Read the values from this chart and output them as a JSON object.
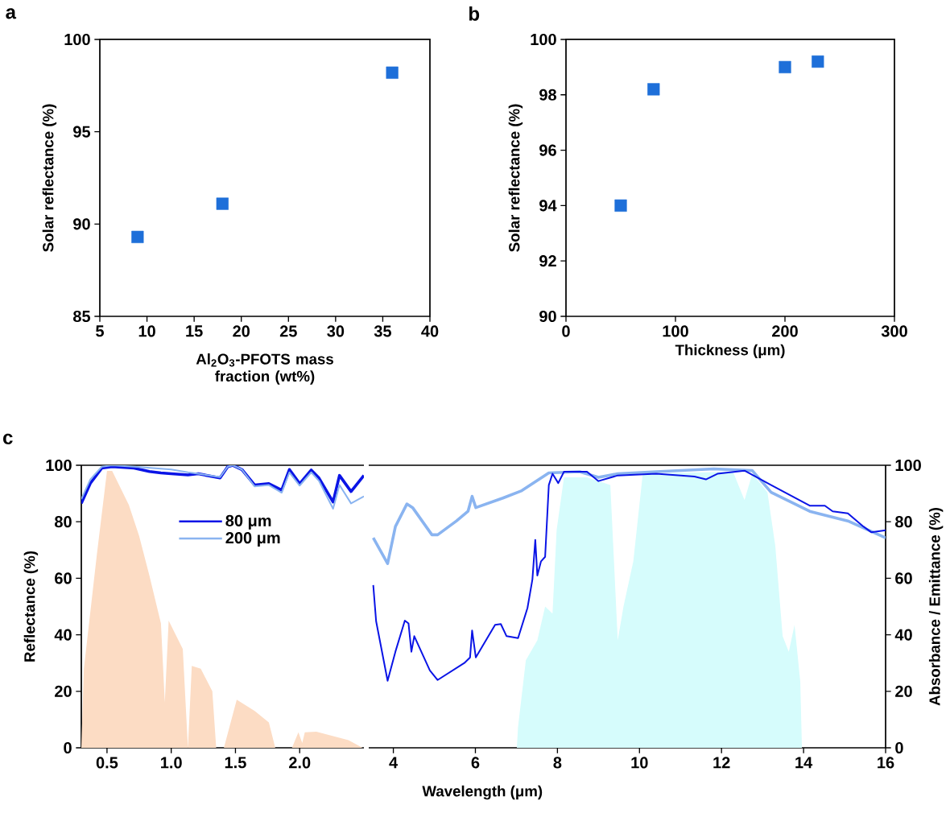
{
  "chart_data": [
    {
      "type": "scatter",
      "title": "a",
      "xlabel": "Al$_{2}$O$_{3}$-PFOTS mass fraction (wt%)",
      "ylabel": "Solar reflectance (%)",
      "x": [
        9,
        18,
        36
      ],
      "values": [
        89.3,
        91.1,
        98.2
      ],
      "color": "#1e6fd9",
      "marker": "square",
      "xlim": [
        5,
        40
      ],
      "xticks": [
        5,
        10,
        15,
        20,
        25,
        30,
        35,
        40
      ],
      "ylim": [
        85,
        100
      ],
      "yticks": [
        85,
        90,
        95,
        100
      ]
    },
    {
      "type": "scatter",
      "title": "b",
      "xlabel": "Thickness (μm)",
      "ylabel": "Solar reflectance (%)",
      "x": [
        50,
        80,
        200,
        230
      ],
      "values": [
        94.0,
        98.2,
        99.0,
        99.2
      ],
      "color": "#1e6fd9",
      "marker": "square",
      "xlim": [
        0,
        300
      ],
      "xticks": [
        0,
        100,
        200,
        300
      ],
      "ylim": [
        90,
        100
      ],
      "yticks": [
        90,
        92,
        94,
        96,
        98,
        100
      ]
    },
    {
      "type": "line",
      "title": "c",
      "ylabel": "Reflectance (%)",
      "xlim": [
        0.3,
        2.5
      ],
      "xticks": [
        0.5,
        {
          "value": 1,
          "label": "1.0"
        },
        1.5,
        {
          "value": 2,
          "label": "2.0"
        }
      ],
      "ylim": [
        0,
        100
      ],
      "yticks": [
        0,
        20,
        40,
        60,
        80,
        100
      ],
      "legend": "top",
      "series": [
        {
          "type": "area",
          "color": "#fcdcc4",
          "x": [
            0.3,
            0.32,
            0.38,
            0.42,
            0.5,
            0.54,
            0.67,
            0.75,
            0.83,
            0.92,
            0.95,
            0.98,
            1.09,
            1.13,
            1.16,
            1.23,
            1.32,
            1.35,
            1.41,
            1.51,
            1.65,
            1.76,
            1.81,
            1.94,
            1.99,
            2.02,
            2.04,
            2.13,
            2.38,
            2.49
          ],
          "values": [
            0,
            28,
            52,
            68,
            98,
            98,
            86,
            75,
            61,
            44,
            16,
            45,
            35,
            0,
            29,
            28,
            20,
            0,
            0,
            17,
            13,
            9,
            0,
            0,
            5.5,
            1.7,
            5.5,
            5.7,
            2.7,
            0
          ]
        },
        {
          "name": "80 μm",
          "color": "#0a14e6",
          "x": [
            0.3,
            0.37,
            0.46,
            0.54,
            0.71,
            0.83,
            0.92,
            1.0,
            1.13,
            1.21,
            1.38,
            1.44,
            1.48,
            1.55,
            1.65,
            1.76,
            1.86,
            1.92,
            2.0,
            2.09,
            2.15,
            2.26,
            2.31,
            2.4,
            2.5
          ],
          "values": [
            86.5,
            93.6,
            99,
            99.5,
            99,
            97.8,
            97.3,
            97,
            96.6,
            97,
            95.5,
            99.5,
            100,
            98.5,
            93,
            93.5,
            91.2,
            98.5,
            93.5,
            98.3,
            95.5,
            87,
            96.4,
            90.7,
            96.4
          ]
        },
        {
          "name": "200 μm",
          "color": "#8ab4f0",
          "x": [
            0.3,
            0.37,
            0.46,
            0.54,
            0.71,
            0.92,
            1.0,
            1.13,
            1.21,
            1.38,
            1.44,
            1.48,
            1.55,
            1.65,
            1.76,
            1.86,
            1.92,
            2.0,
            2.09,
            2.15,
            2.26,
            2.31,
            2.4,
            2.5
          ],
          "values": [
            88,
            95,
            99.5,
            100,
            99.5,
            98.8,
            98.5,
            97.5,
            97,
            95.8,
            99.5,
            100,
            98.5,
            92.5,
            93,
            90.3,
            97.5,
            92.8,
            97.5,
            94.5,
            84.6,
            93,
            86.5,
            89
          ]
        }
      ]
    },
    {
      "type": "line",
      "xlabel": "Wavelength (μm)",
      "y2label": "Absorbance / Emittance (%)",
      "xlim": [
        3.4,
        16
      ],
      "xticks": [
        4,
        6,
        8,
        10,
        12,
        14,
        16
      ],
      "y2lim": [
        0,
        100
      ],
      "y2ticks": [
        0,
        20,
        40,
        60,
        80,
        100
      ],
      "series": [
        {
          "type": "area",
          "axis": "y2",
          "color": "#d6fcfc",
          "x": [
            7.01,
            7.04,
            7.23,
            7.51,
            7.7,
            7.88,
            7.98,
            8.16,
            8.72,
            9.29,
            9.47,
            9.61,
            9.85,
            10.08,
            12.28,
            12.56,
            12.75,
            13.12,
            13.31,
            13.49,
            13.64,
            13.78,
            13.92,
            13.96
          ],
          "values": [
            0,
            7.4,
            31,
            38,
            50,
            47.5,
            77,
            95.7,
            95.7,
            93,
            38,
            50,
            66,
            97,
            97.7,
            87.7,
            97,
            90.4,
            71.6,
            39.5,
            34,
            43.5,
            23.4,
            0
          ]
        },
        {
          "axis": "y2",
          "color": "#8ab4f0",
          "x": [
            3.51,
            3.86,
            4.05,
            4.33,
            4.47,
            4.94,
            5.08,
            5.54,
            5.82,
            5.92,
            6.01,
            6.67,
            7.13,
            7.79,
            8.54,
            9.0,
            9.47,
            10.41,
            11.81,
            12.75,
            13.21,
            14.15,
            15.08,
            16
          ],
          "values": [
            74.3,
            65.2,
            78.3,
            86.3,
            85,
            75.4,
            75.4,
            80.3,
            83.7,
            89,
            85,
            88.4,
            91,
            97.3,
            97.7,
            95.7,
            97,
            97.7,
            98.7,
            98.1,
            90.4,
            83.7,
            80.3,
            74.3
          ]
        },
        {
          "axis": "y2",
          "color": "#0a14e6",
          "x": [
            3.51,
            3.58,
            3.86,
            4.05,
            4.28,
            4.37,
            4.44,
            4.51,
            4.89,
            5.08,
            5.73,
            5.87,
            5.92,
            6.01,
            6.48,
            6.62,
            6.76,
            7.04,
            7.27,
            7.39,
            7.46,
            7.51,
            7.6,
            7.7,
            7.79,
            7.88,
            8.02,
            8.16,
            8.72,
            9.0,
            9.47,
            10.41,
            11.34,
            11.62,
            11.9,
            12.56,
            13.21,
            14.15,
            14.52,
            14.71,
            15.08,
            15.46,
            15.65,
            16
          ],
          "values": [
            57.6,
            44.8,
            23.7,
            34,
            45,
            44,
            34,
            39.5,
            27.4,
            24,
            30,
            32,
            41.5,
            32,
            43.5,
            43.8,
            39.5,
            38.8,
            49.5,
            59.6,
            73.6,
            61,
            66,
            67.6,
            93,
            97,
            93.7,
            97.7,
            97.7,
            94.4,
            96.4,
            97,
            96,
            95,
            97,
            98.1,
            93,
            85.7,
            85.7,
            83.7,
            83,
            78.3,
            76.3,
            77
          ]
        }
      ]
    }
  ]
}
